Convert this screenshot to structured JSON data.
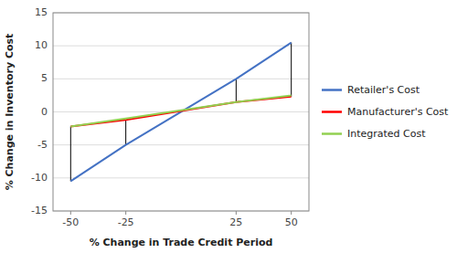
{
  "chart_data": {
    "type": "line",
    "x": [
      -50,
      -25,
      25,
      50
    ],
    "series": [
      {
        "name": "Retailer's Cost",
        "color": "#4472C4",
        "values": [
          -10.5,
          -5.0,
          5.0,
          10.5
        ]
      },
      {
        "name": "Manufacturer's Cost",
        "color": "#FF0000",
        "values": [
          -2.2,
          -1.2,
          1.5,
          2.3
        ]
      },
      {
        "name": "Integrated Cost",
        "color": "#92D050",
        "values": [
          -2.2,
          -1.0,
          1.5,
          2.5
        ]
      }
    ],
    "vlines": [
      {
        "x": -50,
        "y_bottom": -10.5,
        "y_top": -2.2
      },
      {
        "x": -25,
        "y_bottom": -5.0,
        "y_top": -1.2
      },
      {
        "x": 25,
        "y_bottom": 1.5,
        "y_top": 5.0
      },
      {
        "x": 50,
        "y_bottom": 2.3,
        "y_top": 10.5
      }
    ],
    "xlabel": "% Change in Trade Credit Period",
    "ylabel": "% Change in Inventory Cost",
    "xlim": [
      -58,
      58
    ],
    "ylim": [
      -15,
      15
    ],
    "xticks": [
      -50,
      -25,
      25,
      50
    ],
    "yticks": [
      -15,
      -10,
      -5,
      0,
      5,
      10,
      15
    ],
    "grid": true,
    "legend": "right"
  }
}
